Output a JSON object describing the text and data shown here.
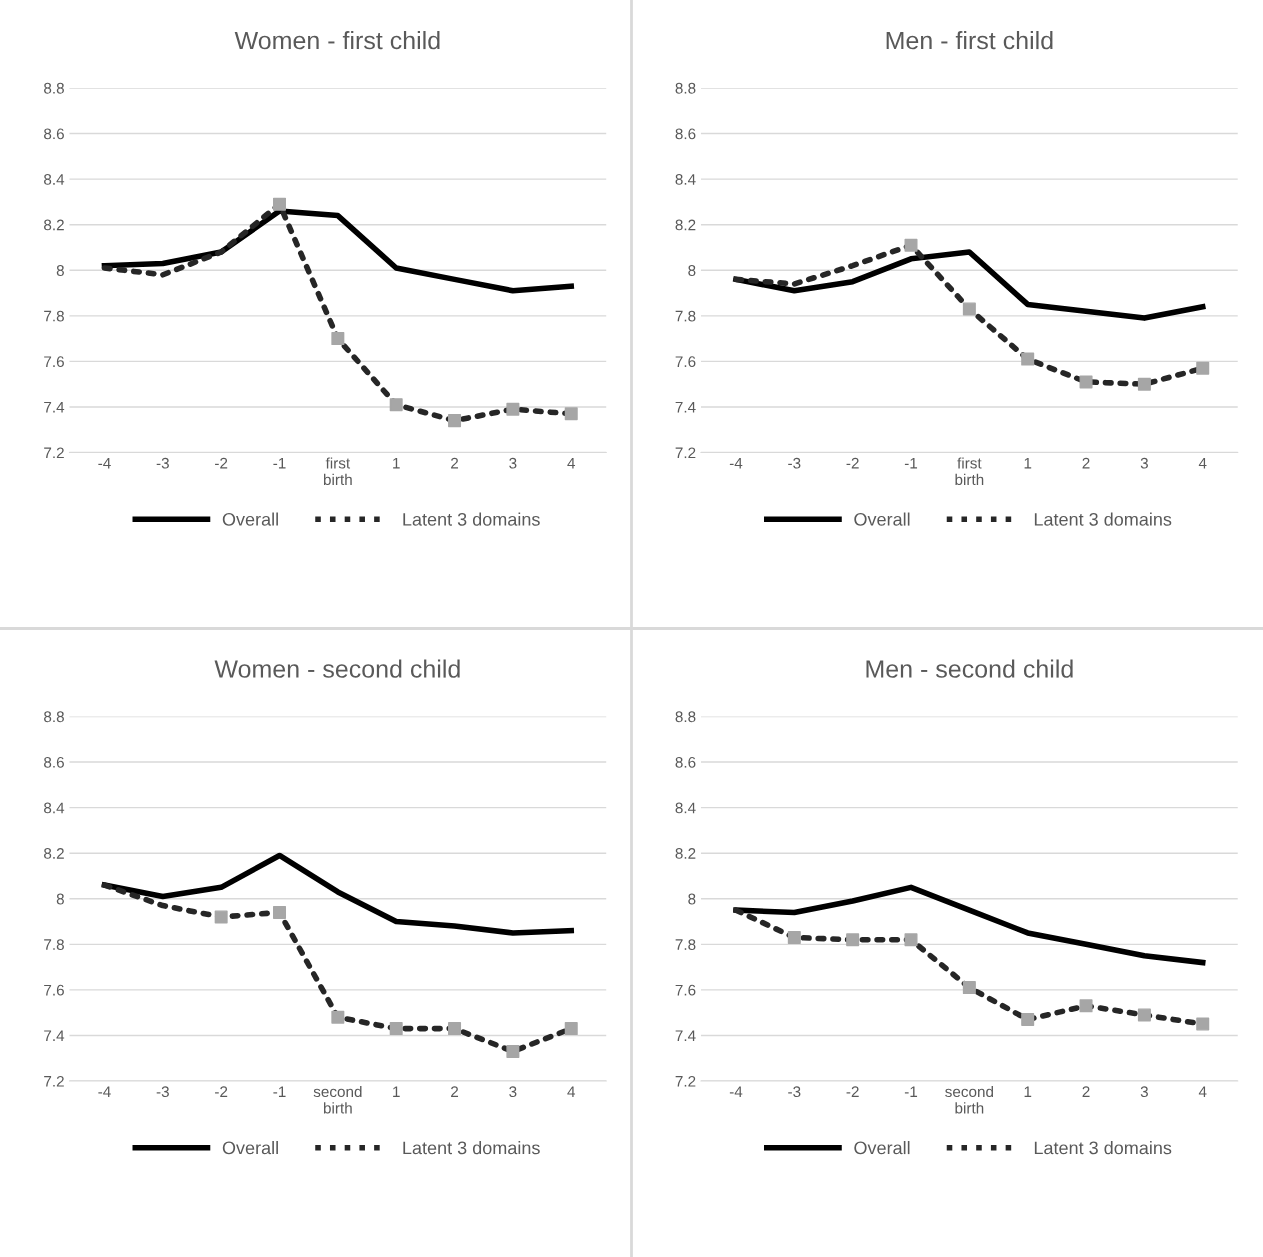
{
  "chart_data": [
    {
      "type": "line",
      "title": "Women - first child",
      "categories": [
        "-4",
        "-3",
        "-2",
        "-1",
        "first\nbirth",
        "1",
        "2",
        "3",
        "4"
      ],
      "ylim": [
        7.2,
        8.8
      ],
      "yticks": [
        7.2,
        7.4,
        7.6,
        7.8,
        8,
        8.2,
        8.4,
        8.6,
        8.8
      ],
      "grid": "y",
      "legend": "bottom",
      "series": [
        {
          "name": "Overall",
          "color": "#000000",
          "line_style": "solid",
          "values": [
            8.02,
            8.03,
            8.08,
            8.26,
            8.24,
            8.01,
            7.96,
            7.91,
            7.93
          ]
        },
        {
          "name": "Latent 3 domains",
          "color": "#262626",
          "line_style": "dotted",
          "values": [
            8.01,
            7.98,
            8.08,
            8.29,
            7.7,
            7.41,
            7.34,
            7.39,
            7.37
          ]
        },
        {
          "type": "scatter",
          "color": "#a6a6a6",
          "marker": "square",
          "values": [
            null,
            null,
            null,
            8.29,
            7.7,
            7.41,
            7.34,
            7.39,
            7.37
          ]
        }
      ]
    },
    {
      "type": "line",
      "title": "Men - first child",
      "categories": [
        "-4",
        "-3",
        "-2",
        "-1",
        "first\nbirth",
        "1",
        "2",
        "3",
        "4"
      ],
      "ylim": [
        7.2,
        8.8
      ],
      "yticks": [
        7.2,
        7.4,
        7.6,
        7.8,
        8,
        8.2,
        8.4,
        8.6,
        8.8
      ],
      "grid": "y",
      "legend": "bottom",
      "series": [
        {
          "name": "Overall",
          "color": "#000000",
          "line_style": "solid",
          "values": [
            7.96,
            7.91,
            7.95,
            8.05,
            8.08,
            7.85,
            7.82,
            7.79,
            7.84
          ]
        },
        {
          "name": "Latent 3 domains",
          "color": "#262626",
          "line_style": "dotted",
          "values": [
            7.96,
            7.94,
            8.02,
            8.11,
            7.83,
            7.61,
            7.51,
            7.5,
            7.57
          ]
        },
        {
          "type": "scatter",
          "color": "#a6a6a6",
          "marker": "square",
          "values": [
            null,
            null,
            null,
            8.11,
            7.83,
            7.61,
            7.51,
            7.5,
            7.57
          ]
        }
      ]
    },
    {
      "type": "line",
      "title": "Women - second child",
      "categories": [
        "-4",
        "-3",
        "-2",
        "-1",
        "second\nbirth",
        "1",
        "2",
        "3",
        "4"
      ],
      "ylim": [
        7.2,
        8.8
      ],
      "yticks": [
        7.2,
        7.4,
        7.6,
        7.8,
        8,
        8.2,
        8.4,
        8.6,
        8.8
      ],
      "grid": "y",
      "legend": "bottom",
      "series": [
        {
          "name": "Overall",
          "color": "#000000",
          "line_style": "solid",
          "values": [
            8.06,
            8.01,
            8.05,
            8.19,
            8.03,
            7.9,
            7.88,
            7.85,
            7.86
          ]
        },
        {
          "name": "Latent 3 domains",
          "color": "#262626",
          "line_style": "dotted",
          "values": [
            8.06,
            7.97,
            7.92,
            7.94,
            7.48,
            7.43,
            7.43,
            7.33,
            7.43
          ]
        },
        {
          "type": "scatter",
          "color": "#a6a6a6",
          "marker": "square",
          "values": [
            null,
            null,
            7.92,
            7.94,
            7.48,
            7.43,
            7.43,
            7.33,
            7.43
          ]
        }
      ]
    },
    {
      "type": "line",
      "title": "Men - second child",
      "categories": [
        "-4",
        "-3",
        "-2",
        "-1",
        "second\nbirth",
        "1",
        "2",
        "3",
        "4"
      ],
      "ylim": [
        7.2,
        8.8
      ],
      "yticks": [
        7.2,
        7.4,
        7.6,
        7.8,
        8,
        8.2,
        8.4,
        8.6,
        8.8
      ],
      "grid": "y",
      "legend": "bottom",
      "series": [
        {
          "name": "Overall",
          "color": "#000000",
          "line_style": "solid",
          "values": [
            7.95,
            7.94,
            7.99,
            8.05,
            7.95,
            7.85,
            7.8,
            7.75,
            7.72
          ]
        },
        {
          "name": "Latent 3 domains",
          "color": "#262626",
          "line_style": "dotted",
          "values": [
            7.95,
            7.83,
            7.82,
            7.82,
            7.61,
            7.47,
            7.53,
            7.49,
            7.45
          ]
        },
        {
          "type": "scatter",
          "color": "#a6a6a6",
          "marker": "square",
          "values": [
            null,
            7.83,
            7.82,
            7.82,
            7.61,
            7.47,
            7.53,
            7.49,
            7.45
          ]
        }
      ]
    }
  ]
}
